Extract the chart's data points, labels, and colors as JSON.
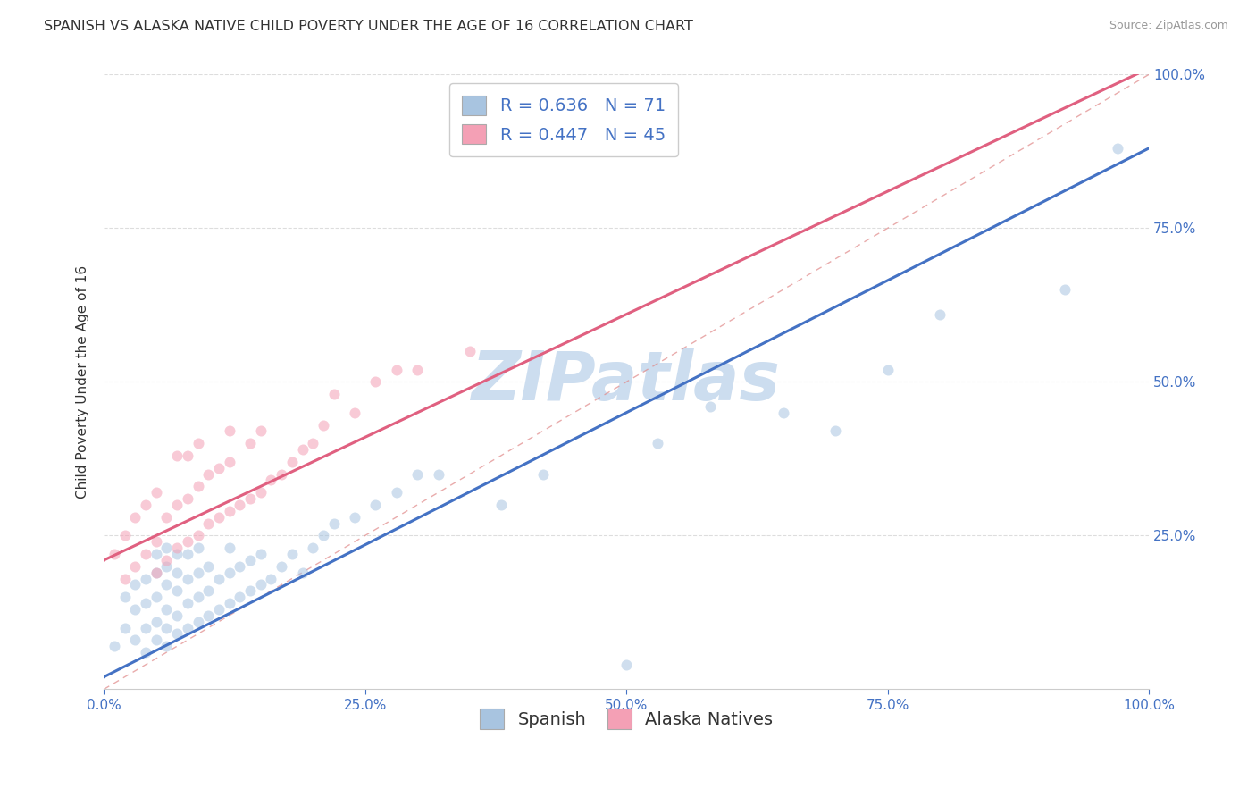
{
  "title": "SPANISH VS ALASKA NATIVE CHILD POVERTY UNDER THE AGE OF 16 CORRELATION CHART",
  "source": "Source: ZipAtlas.com",
  "ylabel": "Child Poverty Under the Age of 16",
  "xlim": [
    0,
    1
  ],
  "ylim": [
    0,
    1
  ],
  "xtick_labels": [
    "0.0%",
    "25.0%",
    "50.0%",
    "75.0%",
    "100.0%"
  ],
  "xtick_positions": [
    0,
    0.25,
    0.5,
    0.75,
    1.0
  ],
  "ytick_labels": [
    "25.0%",
    "50.0%",
    "75.0%",
    "100.0%"
  ],
  "ytick_positions": [
    0.25,
    0.5,
    0.75,
    1.0
  ],
  "spanish_color": "#a8c4e0",
  "alaska_color": "#f4a0b5",
  "trend_spanish_color": "#4472c4",
  "trend_alaska_color": "#e06080",
  "diagonal_color": "#ddaaaa",
  "watermark_color": "#ccddef",
  "legend_R_spanish": "0.636",
  "legend_N_spanish": "71",
  "legend_R_alaska": "0.447",
  "legend_N_alaska": "45",
  "background_color": "#ffffff",
  "grid_color": "#dddddd",
  "title_fontsize": 11.5,
  "axis_label_fontsize": 11,
  "tick_fontsize": 11,
  "legend_fontsize": 14,
  "marker_size": 75,
  "marker_alpha": 0.55,
  "spanish_x": [
    0.01,
    0.02,
    0.02,
    0.03,
    0.03,
    0.03,
    0.04,
    0.04,
    0.04,
    0.04,
    0.05,
    0.05,
    0.05,
    0.05,
    0.05,
    0.06,
    0.06,
    0.06,
    0.06,
    0.06,
    0.06,
    0.07,
    0.07,
    0.07,
    0.07,
    0.07,
    0.08,
    0.08,
    0.08,
    0.08,
    0.09,
    0.09,
    0.09,
    0.09,
    0.1,
    0.1,
    0.1,
    0.11,
    0.11,
    0.12,
    0.12,
    0.12,
    0.13,
    0.13,
    0.14,
    0.14,
    0.15,
    0.15,
    0.16,
    0.17,
    0.18,
    0.19,
    0.2,
    0.21,
    0.22,
    0.24,
    0.26,
    0.28,
    0.3,
    0.32,
    0.38,
    0.42,
    0.5,
    0.53,
    0.58,
    0.65,
    0.7,
    0.75,
    0.8,
    0.92,
    0.97
  ],
  "spanish_y": [
    0.07,
    0.1,
    0.15,
    0.08,
    0.13,
    0.17,
    0.06,
    0.1,
    0.14,
    0.18,
    0.08,
    0.11,
    0.15,
    0.19,
    0.22,
    0.07,
    0.1,
    0.13,
    0.17,
    0.2,
    0.23,
    0.09,
    0.12,
    0.16,
    0.19,
    0.22,
    0.1,
    0.14,
    0.18,
    0.22,
    0.11,
    0.15,
    0.19,
    0.23,
    0.12,
    0.16,
    0.2,
    0.13,
    0.18,
    0.14,
    0.19,
    0.23,
    0.15,
    0.2,
    0.16,
    0.21,
    0.17,
    0.22,
    0.18,
    0.2,
    0.22,
    0.19,
    0.23,
    0.25,
    0.27,
    0.28,
    0.3,
    0.32,
    0.35,
    0.35,
    0.3,
    0.35,
    0.04,
    0.4,
    0.46,
    0.45,
    0.42,
    0.52,
    0.61,
    0.65,
    0.88
  ],
  "alaska_x": [
    0.01,
    0.02,
    0.02,
    0.03,
    0.03,
    0.04,
    0.04,
    0.05,
    0.05,
    0.05,
    0.06,
    0.06,
    0.07,
    0.07,
    0.07,
    0.08,
    0.08,
    0.08,
    0.09,
    0.09,
    0.09,
    0.1,
    0.1,
    0.11,
    0.11,
    0.12,
    0.12,
    0.12,
    0.13,
    0.14,
    0.14,
    0.15,
    0.15,
    0.16,
    0.17,
    0.18,
    0.19,
    0.2,
    0.21,
    0.22,
    0.24,
    0.26,
    0.28,
    0.3,
    0.35
  ],
  "alaska_y": [
    0.22,
    0.18,
    0.25,
    0.2,
    0.28,
    0.22,
    0.3,
    0.19,
    0.24,
    0.32,
    0.21,
    0.28,
    0.23,
    0.3,
    0.38,
    0.24,
    0.31,
    0.38,
    0.25,
    0.33,
    0.4,
    0.27,
    0.35,
    0.28,
    0.36,
    0.29,
    0.37,
    0.42,
    0.3,
    0.31,
    0.4,
    0.32,
    0.42,
    0.34,
    0.35,
    0.37,
    0.39,
    0.4,
    0.43,
    0.48,
    0.45,
    0.5,
    0.52,
    0.52,
    0.55
  ],
  "trend_spanish_slope": 0.86,
  "trend_spanish_intercept": 0.02,
  "trend_alaska_slope": 0.8,
  "trend_alaska_intercept": 0.21
}
